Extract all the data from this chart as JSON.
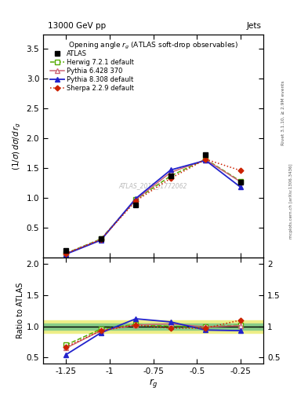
{
  "title_top": "13000 GeV pp",
  "title_right": "Jets",
  "plot_title": "Opening angle $r_g$ (ATLAS soft-drop observables)",
  "watermark": "ATLAS_2019_I1772062",
  "rivet_text": "Rivet 3.1.10, ≥ 2.9M events",
  "arxiv_text": "mcplots.cern.ch [arXiv:1306.3436]",
  "xlabel": "$r_g$",
  "ylabel_main": "$(1/\\sigma)\\,d\\sigma/d\\,r_g$",
  "ylabel_ratio": "Ratio to ATLAS",
  "xdata": [
    -1.25,
    -1.05,
    -0.85,
    -0.65,
    -0.45,
    -0.25
  ],
  "atlas_y": [
    0.12,
    0.32,
    0.88,
    1.37,
    1.72,
    1.27
  ],
  "herwig_y": [
    0.07,
    0.31,
    0.97,
    1.37,
    1.65,
    1.28
  ],
  "pythia6_y": [
    0.065,
    0.3,
    0.97,
    1.43,
    1.64,
    1.27
  ],
  "pythia8_y": [
    0.055,
    0.29,
    0.99,
    1.47,
    1.63,
    1.18
  ],
  "sherpa_y": [
    0.065,
    0.3,
    0.95,
    1.33,
    1.65,
    1.46
  ],
  "herwig_ratio": [
    0.7,
    0.955,
    1.03,
    1.0,
    0.99,
    1.02
  ],
  "pythia6_ratio": [
    0.65,
    0.93,
    1.02,
    1.04,
    0.99,
    1.01
  ],
  "pythia8_ratio": [
    0.545,
    0.895,
    1.12,
    1.07,
    0.94,
    0.93
  ],
  "sherpa_ratio": [
    0.67,
    0.93,
    1.02,
    0.97,
    0.97,
    1.1
  ],
  "atlas_color": "#000000",
  "herwig_color": "#55aa00",
  "pythia6_color": "#cc6677",
  "pythia8_color": "#2222cc",
  "sherpa_color": "#cc2200",
  "ylim_main": [
    0,
    3.75
  ],
  "ylim_ratio": [
    0.4,
    2.1
  ],
  "yticks_main": [
    0.5,
    1.0,
    1.5,
    2.0,
    2.5,
    3.0,
    3.5
  ],
  "yticks_ratio": [
    0.5,
    1.0,
    1.5,
    2.0
  ],
  "xlim": [
    -1.38,
    -0.12
  ],
  "xtick_locs": [
    -1.25,
    -1.0,
    -0.75,
    -0.5,
    -0.25
  ],
  "xtick_labels": [
    "-1.25",
    "-1",
    "-0.75",
    "-0.5",
    "-0.25"
  ],
  "band_yellow": [
    0.9,
    1.1
  ],
  "band_green": [
    0.95,
    1.05
  ]
}
